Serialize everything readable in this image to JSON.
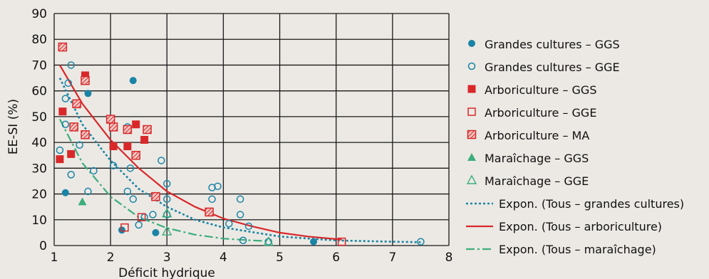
{
  "colors": {
    "background": "#ece9e4",
    "grid": "#1a1a1a",
    "grandes_cultures": "#1a84a6",
    "arboriculture": "#d8282a",
    "maraichage": "#3cae7b",
    "hatch_fill": "#f2c7c3"
  },
  "chart_data": {
    "type": "scatter",
    "title": "",
    "xlabel": "Déficit hydrique",
    "ylabel": "EE-SI (%)",
    "xlim": [
      1,
      8
    ],
    "ylim": [
      0,
      90
    ],
    "xticks": [
      "1",
      "2",
      "3",
      "4",
      "5",
      "6",
      "7",
      "8"
    ],
    "yticks": [
      "0",
      "10",
      "20",
      "30",
      "40",
      "50",
      "60",
      "70",
      "80",
      "90"
    ],
    "grid": true,
    "legend_position": "right",
    "series": [
      {
        "name": "Grandes cultures – GGS",
        "marker": "filled-circle",
        "color": "#1a84a6",
        "points": [
          [
            1.2,
            20.5
          ],
          [
            1.6,
            59
          ],
          [
            2.2,
            6
          ],
          [
            2.4,
            64
          ],
          [
            2.8,
            5
          ],
          [
            5.6,
            1.5
          ]
        ]
      },
      {
        "name": "Grandes cultures – GGE",
        "marker": "open-circle",
        "color": "#1a84a6",
        "points": [
          [
            1.1,
            37
          ],
          [
            1.2,
            47
          ],
          [
            1.2,
            57
          ],
          [
            1.25,
            63
          ],
          [
            1.3,
            70
          ],
          [
            1.3,
            27.5
          ],
          [
            1.45,
            39
          ],
          [
            1.6,
            21
          ],
          [
            1.7,
            29
          ],
          [
            2.05,
            31
          ],
          [
            2.3,
            46
          ],
          [
            2.3,
            21
          ],
          [
            2.35,
            30
          ],
          [
            2.4,
            18
          ],
          [
            2.5,
            8
          ],
          [
            2.6,
            11
          ],
          [
            2.75,
            12
          ],
          [
            2.9,
            33
          ],
          [
            3.0,
            24
          ],
          [
            3.0,
            18
          ],
          [
            3.0,
            12
          ],
          [
            3.8,
            22.5
          ],
          [
            3.8,
            18
          ],
          [
            3.9,
            23
          ],
          [
            4.1,
            8.5
          ],
          [
            4.3,
            18
          ],
          [
            4.3,
            12
          ],
          [
            4.45,
            7.5
          ],
          [
            4.35,
            2
          ],
          [
            4.8,
            1.5
          ],
          [
            7.5,
            1.5
          ]
        ]
      },
      {
        "name": "Arboriculture – GGS",
        "marker": "filled-square",
        "color": "#d8282a",
        "points": [
          [
            1.1,
            33.5
          ],
          [
            1.15,
            52
          ],
          [
            1.3,
            35.5
          ],
          [
            1.55,
            66
          ],
          [
            2.05,
            38.5
          ],
          [
            2.3,
            38.5
          ],
          [
            2.45,
            47
          ],
          [
            2.6,
            41
          ]
        ]
      },
      {
        "name": "Arboriculture – GGE",
        "marker": "open-square",
        "color": "#d8282a",
        "points": [
          [
            2.25,
            7
          ],
          [
            2.55,
            11
          ],
          [
            6.1,
            1.5
          ]
        ]
      },
      {
        "name": "Arboriculture – MA",
        "marker": "hatched-square",
        "color": "#d8282a",
        "points": [
          [
            1.15,
            77
          ],
          [
            1.35,
            46
          ],
          [
            1.4,
            55
          ],
          [
            1.55,
            64
          ],
          [
            1.55,
            43
          ],
          [
            2.0,
            49
          ],
          [
            2.05,
            46
          ],
          [
            2.3,
            45
          ],
          [
            2.45,
            35
          ],
          [
            2.65,
            45
          ],
          [
            2.8,
            19
          ],
          [
            3.75,
            13
          ]
        ]
      },
      {
        "name": "Maraîchage – GGS",
        "marker": "filled-triangle",
        "color": "#3cae7b",
        "points": [
          [
            1.5,
            17
          ]
        ]
      },
      {
        "name": "Maraîchage – GGE",
        "marker": "open-triangle",
        "color": "#3cae7b",
        "points": [
          [
            3.0,
            5.5
          ],
          [
            3.0,
            12.5
          ],
          [
            4.8,
            1.5
          ]
        ]
      }
    ],
    "trendlines": [
      {
        "name": "Expon. (Tous – grandes cultures)",
        "style": "dotted",
        "color": "#1a84a6",
        "points": [
          [
            1.1,
            65
          ],
          [
            1.5,
            47
          ],
          [
            2,
            33
          ],
          [
            2.5,
            22
          ],
          [
            3,
            15
          ],
          [
            3.5,
            10
          ],
          [
            4,
            7
          ],
          [
            5,
            3.5
          ],
          [
            6,
            2
          ],
          [
            7,
            1.5
          ],
          [
            7.5,
            1.3
          ]
        ]
      },
      {
        "name": "Expon. (Tous – arboriculture)",
        "style": "solid",
        "color": "#d8282a",
        "points": [
          [
            1.1,
            70
          ],
          [
            1.5,
            55
          ],
          [
            2,
            41
          ],
          [
            2.5,
            30
          ],
          [
            3,
            21
          ],
          [
            3.5,
            15
          ],
          [
            4,
            10.5
          ],
          [
            4.5,
            7.5
          ],
          [
            5,
            5
          ],
          [
            5.5,
            3.5
          ],
          [
            6,
            2.5
          ],
          [
            6.1,
            2.3
          ]
        ]
      },
      {
        "name": "Expon. (Tous – maraîchage)",
        "style": "dash-dot",
        "color": "#3cae7b",
        "points": [
          [
            1.1,
            49
          ],
          [
            1.5,
            32
          ],
          [
            2,
            19
          ],
          [
            2.5,
            11
          ],
          [
            3,
            6.8
          ],
          [
            3.5,
            4.2
          ],
          [
            4,
            2.7
          ],
          [
            4.5,
            2
          ],
          [
            4.8,
            1.7
          ]
        ]
      }
    ]
  }
}
